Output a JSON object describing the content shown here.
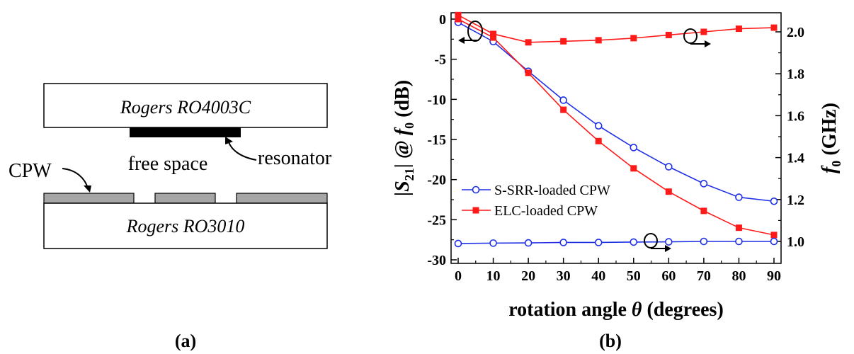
{
  "panel_a": {
    "label": "(a)",
    "top_substrate": "Rogers RO4003C",
    "bottom_substrate": "Rogers RO3010",
    "gap_label": "free space",
    "resonator_label": "resonator",
    "cpw_label": "CPW"
  },
  "panel_b": {
    "label": "(b)"
  },
  "chart_data": {
    "type": "line",
    "xlabel": "rotation angle θ (degrees)",
    "ylabel_left": "|S21| @ f0 (dB)",
    "ylabel_right": "f0 (GHz)",
    "x": [
      0,
      10,
      20,
      30,
      40,
      50,
      60,
      70,
      80,
      90
    ],
    "x_ticks": [
      "0",
      "10",
      "20",
      "30",
      "40",
      "50",
      "60",
      "70",
      "80",
      "90"
    ],
    "xlim": [
      0,
      90
    ],
    "ylim_left": [
      -30,
      0
    ],
    "y_ticks_left": [
      "0",
      "-5",
      "-10",
      "-15",
      "-20",
      "-25",
      "-30"
    ],
    "ylim_right": [
      0.9,
      2.1
    ],
    "y_ticks_right": [
      "1.0",
      "1.2",
      "1.4",
      "1.6",
      "1.8",
      "2.0"
    ],
    "grid": false,
    "legend_position": "lower-left",
    "series": [
      {
        "name": "S-SRR-loaded CPW",
        "axis": "left",
        "color": "#1f2fe6",
        "marker": "open-circle",
        "values": [
          -0.4,
          -2.8,
          -6.5,
          -10.1,
          -13.3,
          -16.0,
          -18.4,
          -20.5,
          -22.2,
          -22.7
        ]
      },
      {
        "name": "ELC-loaded CPW",
        "axis": "left",
        "color": "#ff1a1a",
        "marker": "filled-square",
        "values": [
          0.0,
          -2.3,
          -6.7,
          -11.3,
          -15.2,
          -18.6,
          -21.5,
          -23.9,
          -26.0,
          -26.9
        ]
      },
      {
        "name": "ELC-loaded CPW",
        "axis": "right",
        "color": "#ff1a1a",
        "marker": "filled-square",
        "in_legend": false,
        "values": [
          2.08,
          1.99,
          1.95,
          1.955,
          1.96,
          1.97,
          1.985,
          2.0,
          2.015,
          2.02
        ]
      },
      {
        "name": "S-SRR-loaded CPW",
        "axis": "right",
        "color": "#1f2fe6",
        "marker": "open-circle",
        "in_legend": false,
        "values": [
          0.99,
          0.992,
          0.993,
          0.995,
          0.995,
          0.997,
          0.998,
          1.0,
          1.0,
          1.0
        ]
      }
    ]
  }
}
